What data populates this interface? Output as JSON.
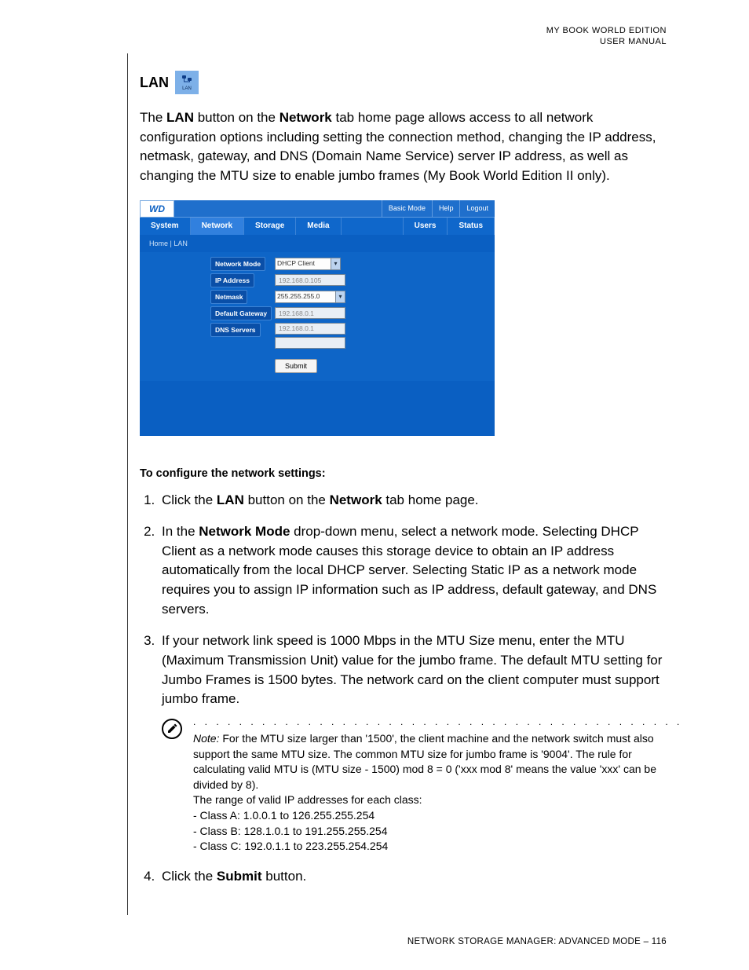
{
  "header": {
    "line1": "MY BOOK WORLD EDITION",
    "line2": "USER MANUAL"
  },
  "section": {
    "title": "LAN",
    "icon_label": "LAN",
    "intro": "The <b>LAN</b> button on the <b>Network</b> tab home page allows access to all network configuration options including setting the connection method, changing the IP address, netmask, gateway, and DNS (Domain Name Service) server IP address, as well as changing the MTU size to enable jumbo frames (My Book World Edition II only)."
  },
  "screenshot": {
    "logo": "WD",
    "top_links": [
      "Basic Mode",
      "Help",
      "Logout"
    ],
    "tabs": [
      "System",
      "Network",
      "Storage",
      "Media",
      "Users",
      "Status"
    ],
    "active_tab": "Network",
    "breadcrumb": "Home | LAN",
    "form": {
      "rows": [
        {
          "label": "Network Mode",
          "type": "select",
          "value": "DHCP Client"
        },
        {
          "label": "IP Address",
          "type": "text",
          "value": "192.168.0.105"
        },
        {
          "label": "Netmask",
          "type": "select",
          "value": "255.255.255.0"
        },
        {
          "label": "Default Gateway",
          "type": "text",
          "value": "192.168.0.1"
        },
        {
          "label": "DNS Servers",
          "type": "dns",
          "values": [
            "192.168.0.1",
            ""
          ]
        }
      ],
      "submit": "Submit"
    }
  },
  "instructions": {
    "heading": "To configure the network settings:",
    "steps": [
      "Click the <b>LAN</b> button on the <b>Network</b> tab home page.",
      "In the <b>Network Mode</b> drop-down menu, select a network mode. Selecting DHCP Client as a network mode causes this storage device to obtain an IP address automatically from the local DHCP server. Selecting Static IP as a network mode requires you to assign IP information such as IP address, default gateway, and DNS servers.",
      "If your network link speed is 1000 Mbps in the MTU Size menu, enter the MTU (Maximum Transmission Unit) value for the jumbo frame. The default MTU setting for Jumbo Frames is 1500 bytes. The network card on the client computer must support jumbo frame."
    ],
    "note": {
      "lead": "Note:",
      "body": " For the MTU size larger than '1500', the client machine and the network switch must also support the same MTU size. The common MTU size for jumbo frame is '9004'. The rule for calculating valid MTU is (MTU size - 1500) mod 8 = 0 ('xxx mod 8' means the value 'xxx' can be divided by 8).",
      "range_heading": "The range of valid IP addresses for each class:",
      "ranges": [
        "- Class A: 1.0.0.1 to 126.255.255.254",
        "- Class B: 128.1.0.1 to 191.255.255.254",
        "- Class C: 192.0.1.1 to 223.255.254.254"
      ]
    },
    "step4": "Click the <b>Submit</b> button."
  },
  "footer": "NETWORK STORAGE MANAGER: ADVANCED MODE – 116"
}
